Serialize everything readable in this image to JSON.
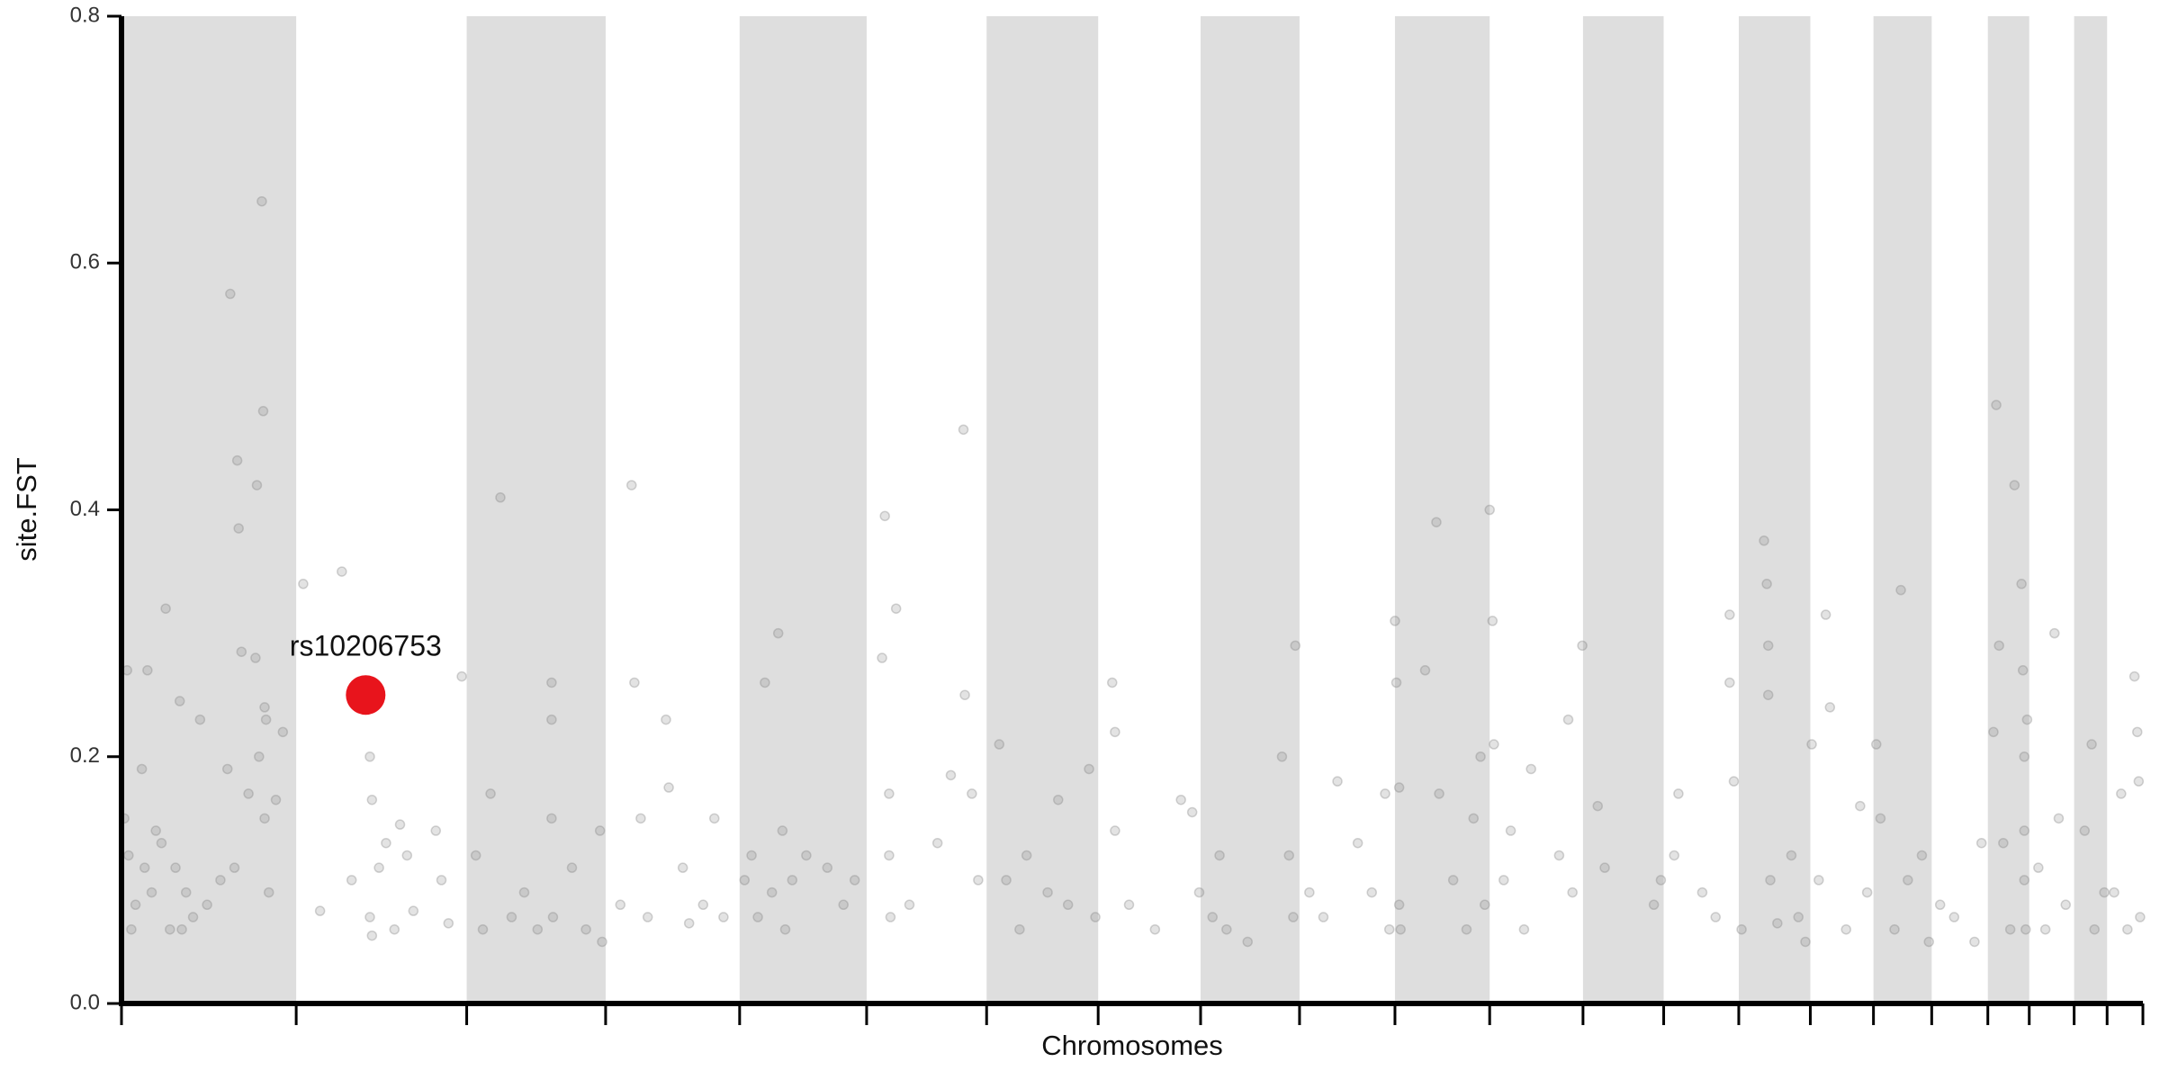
{
  "chart_data": {
    "type": "scatter",
    "xlabel": "Chromosomes",
    "ylabel": "site.FST",
    "xlim": [
      0,
      2881
    ],
    "ylim": [
      0,
      0.8
    ],
    "yticks": [
      {
        "value": 0,
        "label": "0.0"
      },
      0.2,
      0.4,
      0.6,
      0.8
    ],
    "chromosome_boundaries": [
      0,
      249,
      492,
      690,
      881,
      1062,
      1233,
      1392,
      1538,
      1679,
      1815,
      1950,
      2083,
      2198,
      2305,
      2407,
      2497,
      2580,
      2660,
      2719,
      2783,
      2830,
      2881
    ],
    "band_color": "#dedede",
    "series": [
      {
        "color": "#808080",
        "x": [
          4,
          8,
          10,
          14,
          20,
          29,
          33,
          37,
          43,
          49,
          57,
          63,
          69,
          77,
          83,
          86,
          92,
          102,
          112,
          122,
          141,
          151,
          155,
          161,
          165,
          167,
          171,
          181,
          191,
          193,
          196,
          200,
          202,
          204,
          204,
          206,
          210,
          220,
          230,
          259,
          283,
          314,
          328,
          342,
          354,
          354,
          357,
          357,
          367,
          377,
          389,
          397,
          407,
          416,
          448,
          456,
          466,
          485,
          505,
          515,
          526,
          540,
          556,
          574,
          593,
          613,
          613,
          613,
          615,
          642,
          662,
          682,
          685,
          711,
          727,
          731,
          740,
          750,
          776,
          780,
          800,
          809,
          829,
          845,
          858,
          888,
          898,
          907,
          917,
          927,
          936,
          942,
          946,
          956,
          976,
          1006,
          1029,
          1045,
          1084,
          1088,
          1094,
          1094,
          1096,
          1104,
          1123,
          1163,
          1182,
          1200,
          1202,
          1212,
          1221,
          1251,
          1261,
          1280,
          1290,
          1320,
          1335,
          1349,
          1379,
          1388,
          1412,
          1416,
          1416,
          1436,
          1473,
          1510,
          1526,
          1536,
          1555,
          1565,
          1575,
          1605,
          1654,
          1664,
          1670,
          1673,
          1693,
          1713,
          1733,
          1762,
          1782,
          1801,
          1807,
          1815,
          1817,
          1821,
          1821,
          1823,
          1858,
          1874,
          1878,
          1898,
          1917,
          1927,
          1937,
          1943,
          1950,
          1954,
          1956,
          1970,
          1980,
          1999,
          2009,
          2049,
          2062,
          2068,
          2082,
          2104,
          2114,
          2184,
          2194,
          2213,
          2219,
          2253,
          2272,
          2292,
          2292,
          2298,
          2309,
          2341,
          2345,
          2347,
          2347,
          2350,
          2360,
          2380,
          2390,
          2400,
          2409,
          2419,
          2429,
          2435,
          2458,
          2478,
          2488,
          2501,
          2507,
          2527,
          2536,
          2546,
          2566,
          2576,
          2592,
          2612,
          2641,
          2651,
          2668,
          2672,
          2676,
          2682,
          2692,
          2698,
          2708,
          2710,
          2712,
          2712,
          2712,
          2714,
          2716,
          2732,
          2742,
          2755,
          2761,
          2771,
          2798,
          2808,
          2812,
          2826,
          2840,
          2850,
          2859,
          2869,
          2873,
          2875,
          2877
        ],
        "values": [
          0.15,
          0.27,
          0.12,
          0.06,
          0.08,
          0.19,
          0.11,
          0.27,
          0.09,
          0.14,
          0.13,
          0.32,
          0.06,
          0.11,
          0.245,
          0.06,
          0.09,
          0.07,
          0.23,
          0.08,
          0.1,
          0.19,
          0.575,
          0.11,
          0.44,
          0.385,
          0.285,
          0.17,
          0.28,
          0.42,
          0.2,
          0.65,
          0.48,
          0.24,
          0.15,
          0.23,
          0.09,
          0.165,
          0.22,
          0.34,
          0.075,
          0.35,
          0.1,
          0.26,
          0.07,
          0.2,
          0.165,
          0.055,
          0.11,
          0.13,
          0.06,
          0.145,
          0.12,
          0.075,
          0.14,
          0.1,
          0.065,
          0.265,
          0.12,
          0.06,
          0.17,
          0.41,
          0.07,
          0.09,
          0.06,
          0.26,
          0.23,
          0.15,
          0.07,
          0.11,
          0.06,
          0.14,
          0.05,
          0.08,
          0.42,
          0.26,
          0.15,
          0.07,
          0.23,
          0.175,
          0.11,
          0.065,
          0.08,
          0.15,
          0.07,
          0.1,
          0.12,
          0.07,
          0.26,
          0.09,
          0.3,
          0.14,
          0.06,
          0.1,
          0.12,
          0.11,
          0.08,
          0.1,
          0.28,
          0.395,
          0.17,
          0.12,
          0.07,
          0.32,
          0.08,
          0.13,
          0.185,
          0.465,
          0.25,
          0.17,
          0.1,
          0.21,
          0.1,
          0.06,
          0.12,
          0.09,
          0.165,
          0.08,
          0.19,
          0.07,
          0.26,
          0.22,
          0.14,
          0.08,
          0.06,
          0.165,
          0.155,
          0.09,
          0.07,
          0.12,
          0.06,
          0.05,
          0.2,
          0.12,
          0.07,
          0.29,
          0.09,
          0.07,
          0.18,
          0.13,
          0.09,
          0.17,
          0.06,
          0.31,
          0.26,
          0.175,
          0.08,
          0.06,
          0.27,
          0.39,
          0.17,
          0.1,
          0.06,
          0.15,
          0.2,
          0.08,
          0.4,
          0.31,
          0.21,
          0.1,
          0.14,
          0.06,
          0.19,
          0.12,
          0.23,
          0.09,
          0.29,
          0.16,
          0.11,
          0.08,
          0.1,
          0.12,
          0.17,
          0.09,
          0.07,
          0.315,
          0.26,
          0.18,
          0.06,
          0.375,
          0.34,
          0.29,
          0.25,
          0.1,
          0.065,
          0.12,
          0.07,
          0.05,
          0.21,
          0.1,
          0.315,
          0.24,
          0.06,
          0.16,
          0.09,
          0.21,
          0.15,
          0.06,
          0.335,
          0.1,
          0.12,
          0.05,
          0.08,
          0.07,
          0.05,
          0.13,
          0.22,
          0.485,
          0.29,
          0.13,
          0.06,
          0.42,
          0.34,
          0.27,
          0.2,
          0.14,
          0.1,
          0.06,
          0.23,
          0.11,
          0.06,
          0.3,
          0.15,
          0.08,
          0.14,
          0.21,
          0.06,
          0.09,
          0.09,
          0.17,
          0.06,
          0.265,
          0.22,
          0.18,
          0.07
        ]
      },
      {
        "color": "#e8141c",
        "label": "rs10206753",
        "x": [
          348
        ],
        "values": [
          0.25
        ]
      }
    ]
  }
}
